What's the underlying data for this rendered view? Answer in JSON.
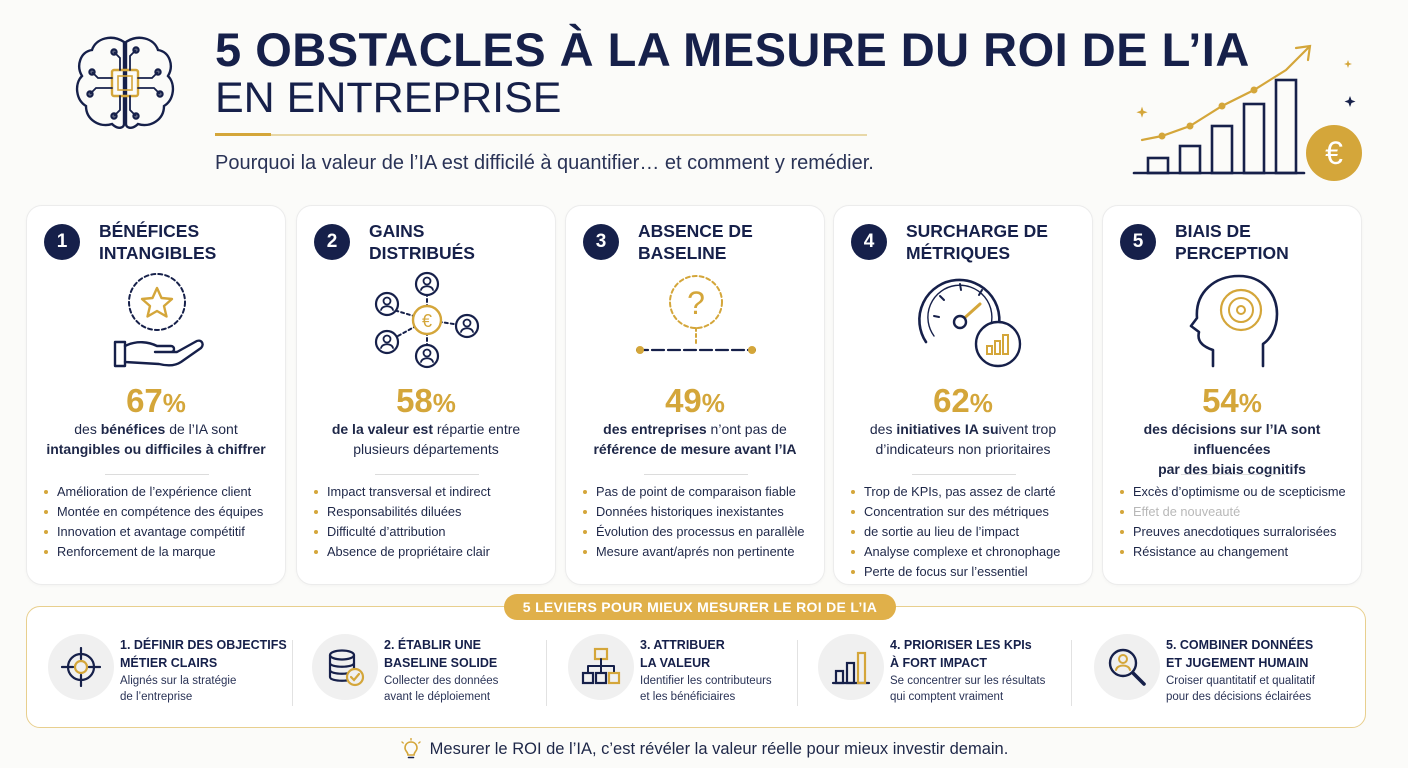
{
  "header": {
    "title_line1": "5 OBSTACLES À LA MESURE DU ROI DE L’IA",
    "title_line2": "EN ENTREPRISE",
    "subtitle": "Pourquoi la valeur de l’IA est difficilé à quantifier… et comment y remédier.",
    "currency_symbol": "€"
  },
  "cards": [
    {
      "number": "1",
      "title_line1": "BÉNÉFICES",
      "title_line2": "INTANGIBLES",
      "icon": "star-in-hand-icon",
      "percent": "67",
      "percent_sign": "%",
      "desc_parts": [
        "des ",
        "bénéfices",
        " de l’IA sont",
        "intangibles ou difficiles à chiffrer"
      ],
      "bullets": [
        "Amélioration de l’expérience client",
        "Montée en compétence des équipes",
        "Innovation et avantage compétitif",
        "Renforcement de la marque"
      ]
    },
    {
      "number": "2",
      "title_line1": "GAINS",
      "title_line2": "DISTRIBUÉS",
      "icon": "network-people-icon",
      "percent": "58",
      "percent_sign": "%",
      "desc_parts": [
        "de la valeur est",
        " répartie entre",
        "plusieurs départements"
      ],
      "bullets": [
        "Impact transversal et indirect",
        "Responsabilités diluées",
        "Difficulté d’attribution",
        "Absence de propriétaire clair"
      ]
    },
    {
      "number": "3",
      "title_line1": "ABSENCE DE",
      "title_line2": "BASELINE",
      "icon": "question-mark-icon",
      "question_mark": "?",
      "percent": "49",
      "percent_sign": "%",
      "desc_parts": [
        "des entreprises",
        " n’ont pas de",
        "référence de mesure avant l’IA"
      ],
      "bullets": [
        "Pas de point de comparaison fiable",
        "Données historiques inexistantes",
        "Évolution des processus en parallèle",
        "Mesure avant/aprés non pertinente"
      ]
    },
    {
      "number": "4",
      "title_line1": "SURCHARGE DE",
      "title_line2": "MÉTRIQUES",
      "icon": "gauge-icon",
      "percent": "62",
      "percent_sign": "%",
      "desc_parts": [
        "des ",
        "initiatives IA su",
        "ivent trop",
        "d’indicateurs non prioritaires"
      ],
      "bullets": [
        "Trop de KPIs, pas assez de clarté",
        "Concentration sur des métriques",
        "de sortie au lieu de l’impact",
        "Analyse complexe et chronophage",
        "Perte de focus sur l’essentiel"
      ]
    },
    {
      "number": "5",
      "title_line1": "BIAIS DE",
      "title_line2": "PERCEPTION",
      "icon": "head-target-icon",
      "percent": "54",
      "percent_sign": "%",
      "desc_parts": [
        "des décisions sur l’IA sont influencées",
        "par des biais cognitifs"
      ],
      "bullets": [
        "Excès d’optimisme ou de scepticisme",
        "Effet de nouveauté",
        "Preuves anecdotiques surralorisées",
        "Résistance au changement"
      ]
    }
  ],
  "levers": {
    "banner": "5 LEVIERS POUR MIEUX MESURER LE ROI DE L’IA",
    "items": [
      {
        "title_line1": "1. DÉFINIR DES OBJECTIFS",
        "title_line2": "MÉTIER CLAIRS",
        "desc_line1": "Alignés sur la stratégie",
        "desc_line2": "de l’entreprise",
        "icon": "target-icon"
      },
      {
        "title_line1": "2. ÉTABLIR UNE",
        "title_line2": "BASELINE SOLIDE",
        "desc_line1": "Collecter des données",
        "desc_line2": "avant le déploiement",
        "icon": "database-check-icon"
      },
      {
        "title_line1": "3. ATTRIBUER",
        "title_line2": "LA VALEUR",
        "desc_line1": "Identifier les contributeurs",
        "desc_line2": "et les bénéficiaires",
        "icon": "org-chart-icon"
      },
      {
        "title_line1": "4. PRIORISER LES KPIs",
        "title_line2": "À FORT IMPACT",
        "desc_line1": "Se concentrer sur les résultats",
        "desc_line2": "qui comptent vraiment",
        "icon": "bar-chart-icon"
      },
      {
        "title_line1": "5. COMBINER DONNÉES",
        "title_line2": "ET JUGEMENT HUMAIN",
        "desc_line1": "Croiser quantitatif et qualitatif",
        "desc_line2": "pour des décisions éclairées",
        "icon": "magnifier-person-icon"
      }
    ]
  },
  "footer": {
    "text": "Mesurer le ROI de l’IA, c’est révéler la valeur réelle pour mieux investir demain.",
    "icon": "lightbulb-icon"
  },
  "colors": {
    "navy": "#16204a",
    "gold": "#d4a63a",
    "banner": "#e0b04a"
  }
}
